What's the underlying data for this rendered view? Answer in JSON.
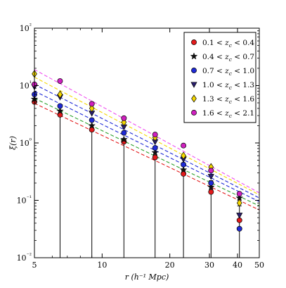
{
  "chart_data": {
    "type": "scatter",
    "title": "",
    "xlabel": "r (h⁻¹ Mpc)",
    "ylabel": "ξ(r)",
    "xscale": "log",
    "yscale": "log",
    "xlim": [
      5,
      50
    ],
    "ylim": [
      0.01,
      100
    ],
    "xticks": [
      5,
      10,
      20,
      30,
      40,
      50
    ],
    "xtick_labels": [
      "5",
      "10",
      "20",
      "30",
      "40",
      "50"
    ],
    "yticks": [
      0.01,
      0.1,
      1,
      10,
      100
    ],
    "ytick_labels": [
      "10⁻²",
      "10⁻¹",
      "10⁰",
      "10¹",
      "10²"
    ],
    "grid": false,
    "legend_position": "top-right",
    "series": [
      {
        "name": "0.1 < z_c < 0.4",
        "marker": "circle",
        "color": "#e31a1c",
        "line_color": "#e31a1c",
        "x": [
          5.0,
          6.5,
          9.0,
          12.5,
          17.2,
          23.0,
          30.5,
          40.8
        ],
        "y": [
          5.2,
          3.1,
          1.7,
          1.05,
          0.56,
          0.29,
          0.14,
          0.045
        ],
        "err": [
          [
            5.2,
            3.1,
            1.7,
            1.05,
            0.56,
            0.29,
            0.14,
            0.045
          ],
          [
            0.4,
            0.25,
            0.15,
            0.1,
            0.06,
            0.04,
            0.08,
            0.035
          ]
        ],
        "fit": [
          5.0,
          50.0,
          4.9,
          0.068
        ]
      },
      {
        "name": "0.4 < z_c < 0.7",
        "marker": "star",
        "color": "#111111",
        "line_color": "#2ca02c",
        "x": [
          5.0,
          6.5,
          9.0,
          12.5,
          17.2,
          23.0,
          30.5,
          40.8
        ],
        "y": [
          5.8,
          3.6,
          2.0,
          1.15,
          0.68,
          0.34,
          0.17,
          0.11
        ],
        "err": [],
        "fit": [
          5.0,
          50.0,
          6.0,
          0.08
        ]
      },
      {
        "name": "0.7 < z_c < 1.0",
        "marker": "circle",
        "color": "#1f2ad6",
        "line_color": "#1f2ad6",
        "x": [
          5.0,
          6.5,
          9.0,
          12.5,
          17.2,
          23.0,
          30.5,
          40.8
        ],
        "y": [
          7.0,
          4.4,
          2.5,
          1.5,
          0.82,
          0.42,
          0.2,
          0.032
        ],
        "err": [],
        "fit": [
          5.0,
          50.0,
          8.0,
          0.095
        ]
      },
      {
        "name": "1.0 < z_c < 1.3",
        "marker": "triangle-down",
        "color": "#2a1f6e",
        "line_color": "#1f2ad6",
        "x": [
          5.0,
          6.5,
          9.0,
          12.5,
          17.2,
          23.0,
          30.5,
          40.8
        ],
        "y": [
          9.5,
          6.3,
          3.3,
          1.9,
          1.05,
          0.52,
          0.26,
          0.055
        ],
        "err": [],
        "fit": [
          5.0,
          50.0,
          10.5,
          0.11
        ]
      },
      {
        "name": "1.3 < z_c < 1.6",
        "marker": "diamond",
        "color": "#f5d800",
        "line_color": "#f5d800",
        "x": [
          5.0,
          6.5,
          9.0,
          12.5,
          17.2,
          23.0,
          30.5,
          40.8
        ],
        "y": [
          16.0,
          7.0,
          4.0,
          2.3,
          1.25,
          0.6,
          0.38,
          0.09
        ],
        "err": [],
        "fit": [
          5.0,
          50.0,
          14.0,
          0.125
        ]
      },
      {
        "name": "1.6 < z_c < 2.1",
        "marker": "circle",
        "color": "#d020c0",
        "line_color": "#f050f0",
        "x": [
          5.0,
          6.5,
          9.0,
          12.5,
          17.2,
          23.0,
          30.5,
          40.8
        ],
        "y": [
          10.5,
          12.0,
          4.8,
          2.7,
          1.4,
          0.9,
          0.33,
          0.13
        ],
        "err": [],
        "fit": [
          5.0,
          50.0,
          19.0,
          0.135
        ]
      }
    ],
    "legend": [
      {
        "prefix": "0.1 < ",
        "var": "z",
        "sub": "c",
        "suffix": " < 0.4"
      },
      {
        "prefix": "0.4 < ",
        "var": "z",
        "sub": "c",
        "suffix": " < 0.7"
      },
      {
        "prefix": "0.7 < ",
        "var": "z",
        "sub": "c",
        "suffix": " < 1.0"
      },
      {
        "prefix": "1.0 < ",
        "var": "z",
        "sub": "c",
        "suffix": " < 1.3"
      },
      {
        "prefix": "1.3 < ",
        "var": "z",
        "sub": "c",
        "suffix": " < 1.6"
      },
      {
        "prefix": "1.6 < ",
        "var": "z",
        "sub": "c",
        "suffix": " < 2.1"
      }
    ]
  }
}
